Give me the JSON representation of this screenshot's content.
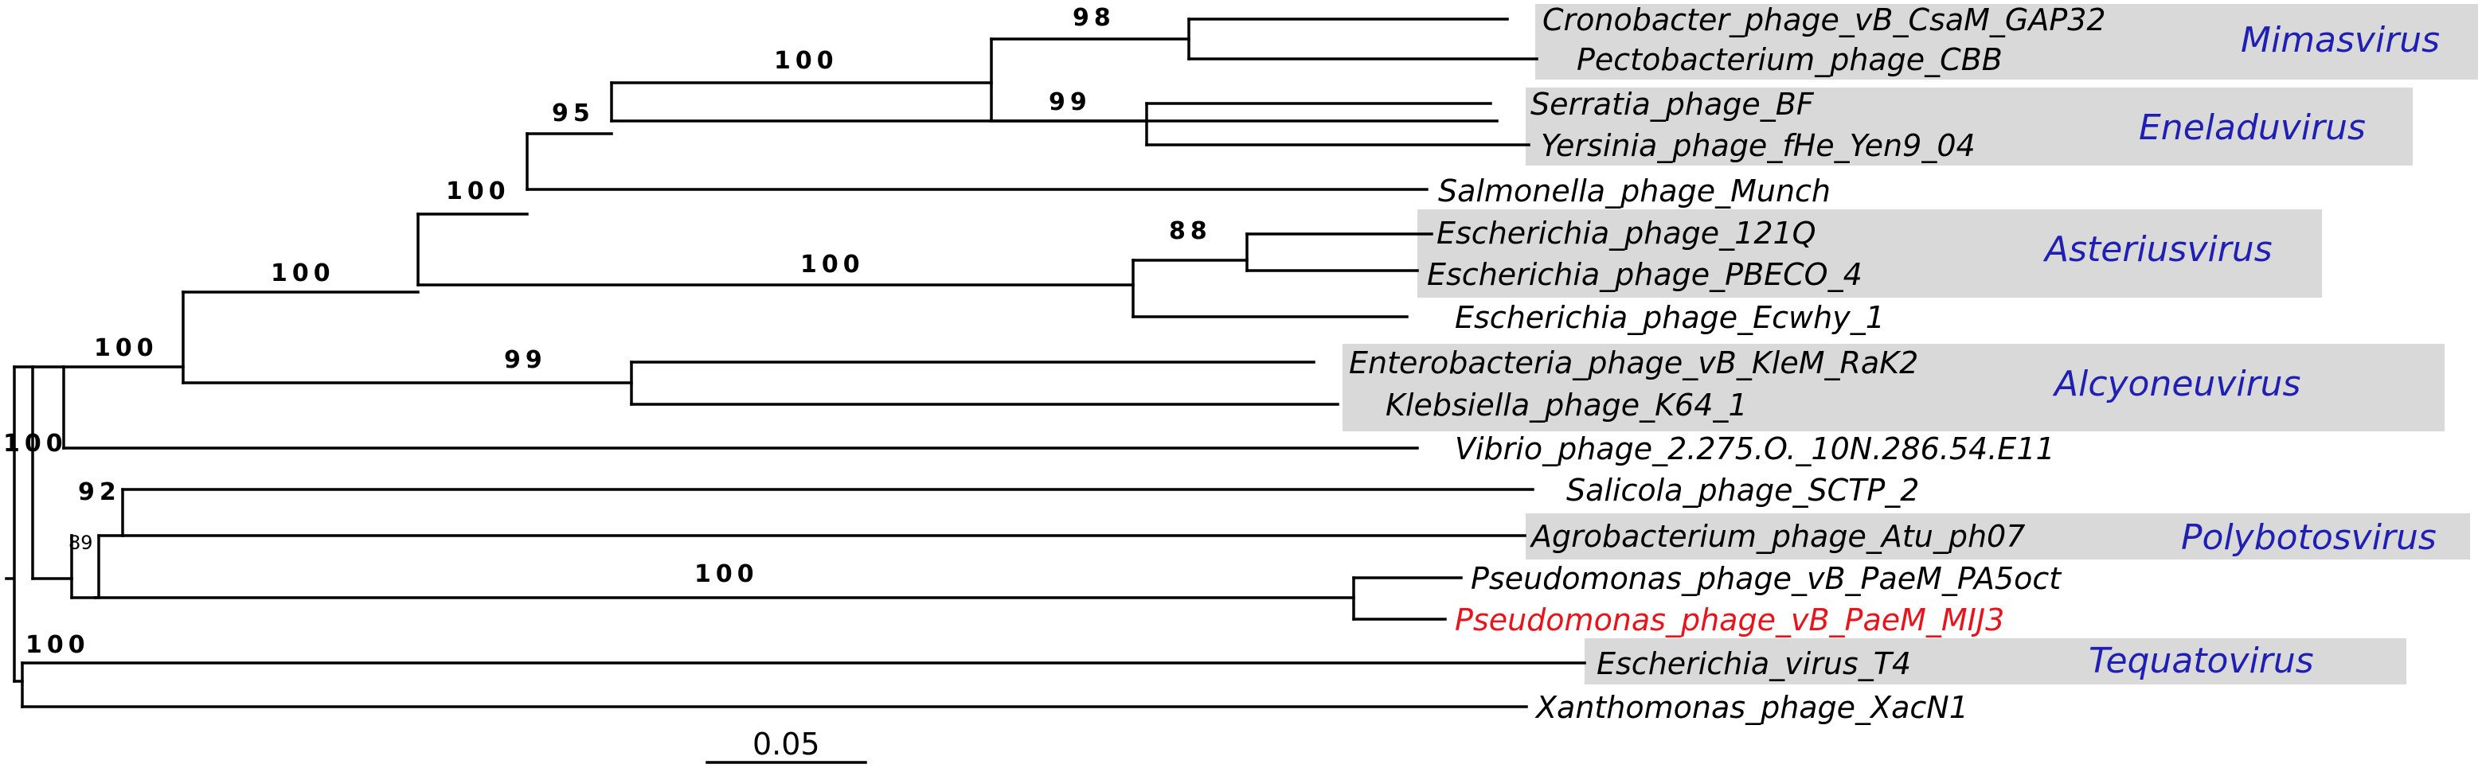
{
  "colors": {
    "genus_label": "#1f1fb4",
    "genus_box": "#d9d9d9",
    "highlight_leaf": "#e8141c",
    "branch": "#000000"
  },
  "leaves": [
    "Cronobacter_phage_vB_CsaM_GAP32",
    "Pectobacterium_phage_CBB",
    "Serratia_phage_BF",
    "Yersinia_phage_fHe_Yen9_04",
    "Salmonella_phage_Munch",
    "Escherichia_phage_121Q",
    "Escherichia_phage_PBECO_4",
    "Escherichia_phage_Ecwhy_1",
    "Enterobacteria_phage_vB_KleM_RaK2",
    "Klebsiella_phage_K64_1",
    "Vibrio_phage_2.275.O._10N.286.54.E11",
    "Salicola_phage_SCTP_2",
    "Agrobacterium_phage_Atu_ph07",
    "Pseudomonas_phage_vB_PaeM_PA5oct",
    "Pseudomonas_phage_vB_PaeM_MIJ3",
    "Escherichia_virus_T4",
    "Xanthomonas_phage_XacN1"
  ],
  "highlighted_leaf": "Pseudomonas_phage_vB_PaeM_MIJ3",
  "genera": [
    "Mimasvirus",
    "Eneladuvirus",
    "Asteriusvirus",
    "Alcyoneuvirus",
    "Polybotosvirus",
    "Tequatovirus"
  ],
  "bootstrap": [
    "98",
    "99",
    "100",
    "95",
    "88",
    "100",
    "99",
    "100",
    "100",
    "100",
    "100",
    "92",
    "89",
    "100",
    "100"
  ],
  "scale_bar": {
    "label": "0.05"
  }
}
